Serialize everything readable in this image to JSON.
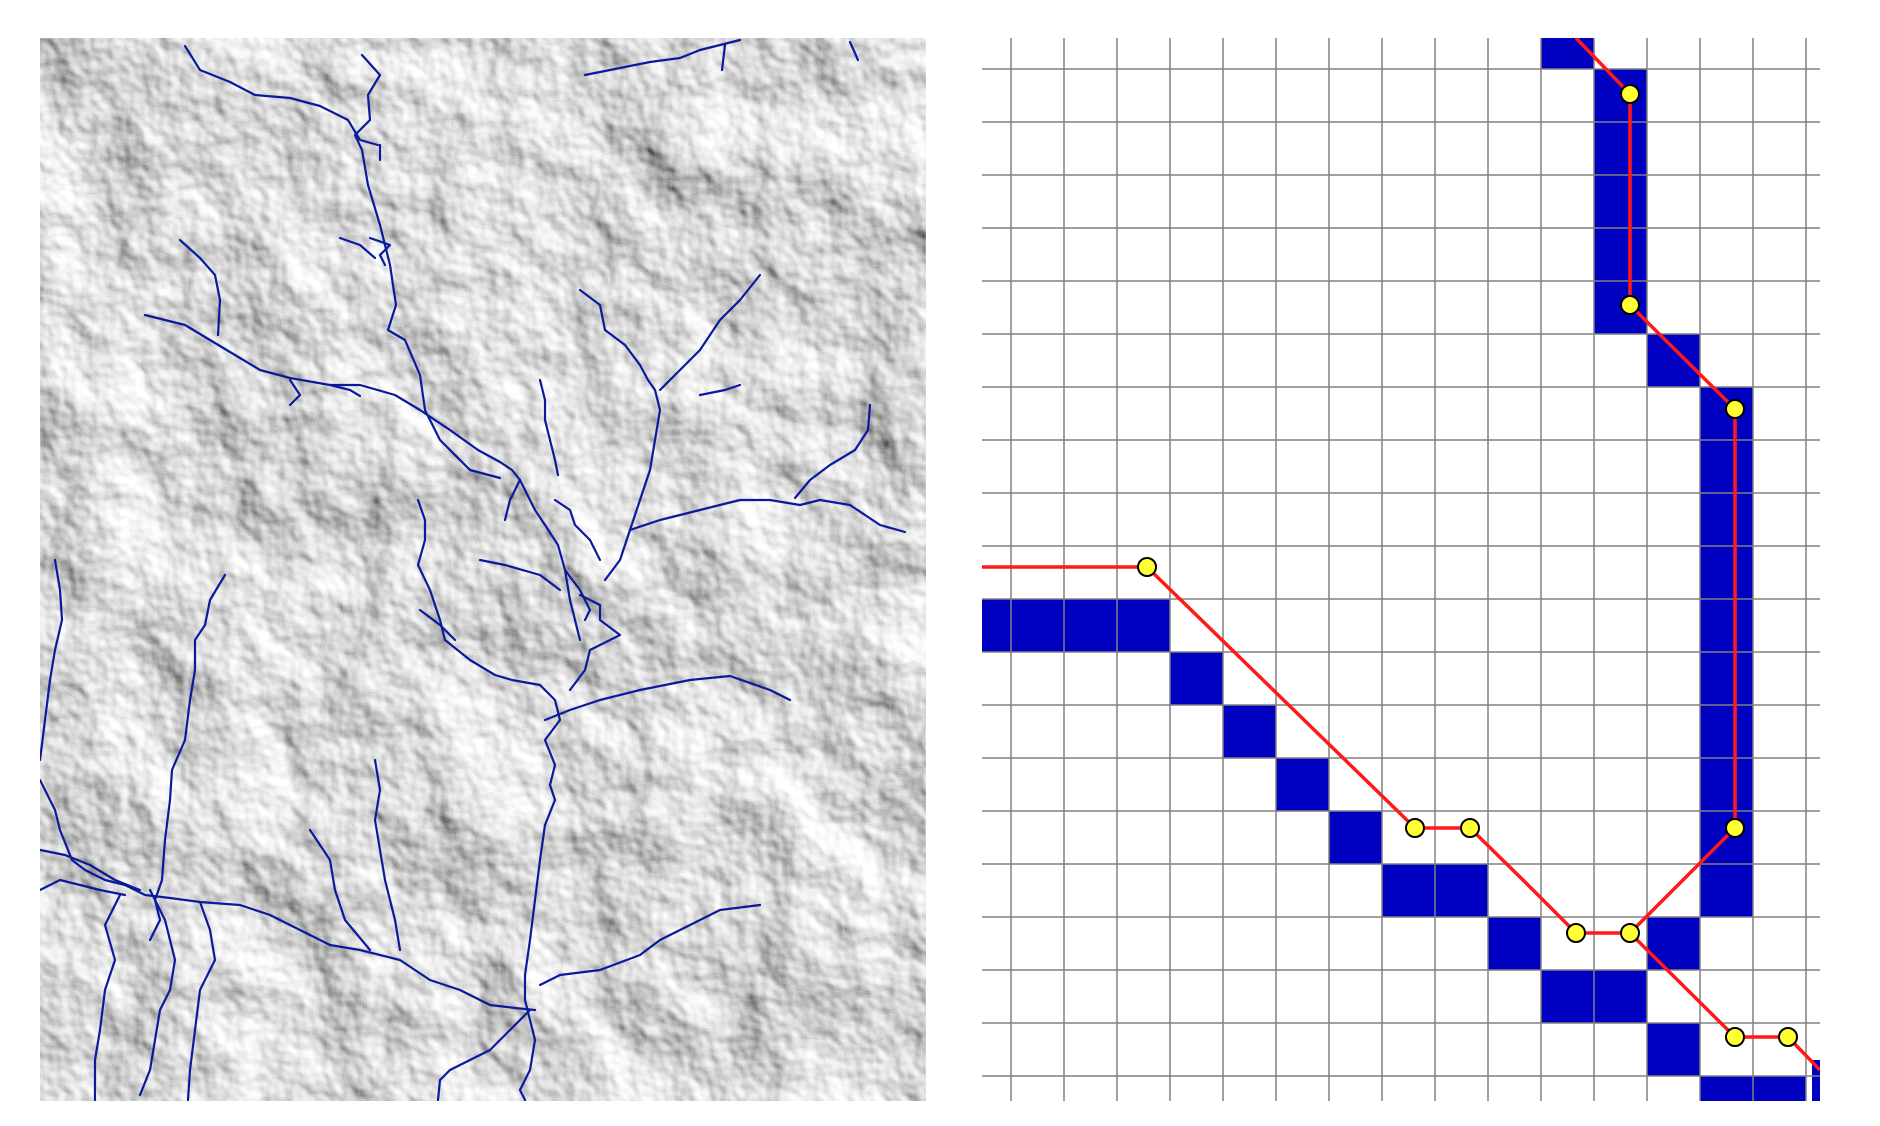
{
  "figure": {
    "left_panel": {
      "kind": "hillshade-relief-with-stream-network",
      "stream_color": "#0a1a9c"
    },
    "right_panel": {
      "kind": "raster-grid-with-vectorized-stream",
      "grid_cols": 16,
      "grid_rows": 20,
      "grid_line_color": "#808080",
      "cell_fill_color": "#0000c0",
      "vector_line_color": "#ff1a1a",
      "vertex_fill_color": "#ffff33",
      "vertex_stroke_color": "#000000"
    }
  }
}
